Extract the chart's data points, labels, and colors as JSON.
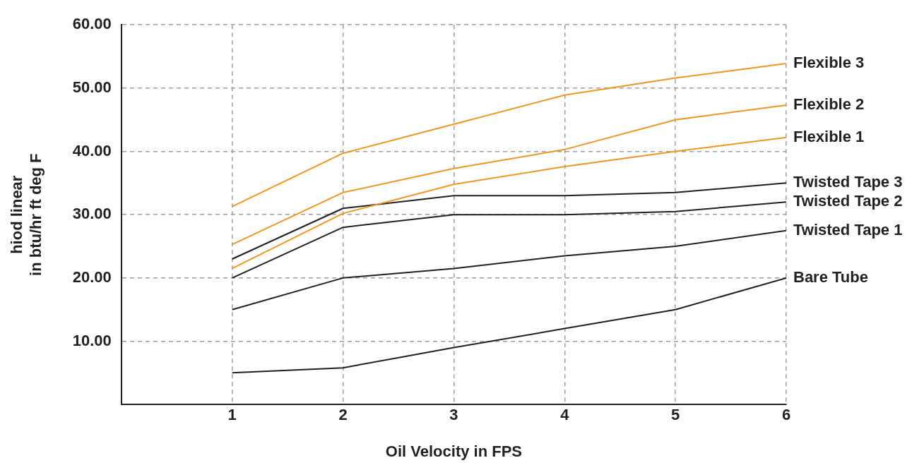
{
  "chart_data": {
    "type": "line",
    "xlabel": "Oil Velocity in FPS",
    "ylabel": "hiod linear\nin btu/hr ft deg F",
    "x": [
      1,
      2,
      3,
      4,
      5,
      6
    ],
    "xlim": [
      0,
      6
    ],
    "xticks": [
      {
        "value": 0,
        "label": null
      },
      1,
      2,
      3,
      4,
      5,
      6
    ],
    "ylim": [
      0,
      60
    ],
    "yticks": [
      {
        "value": 0,
        "label": null
      },
      {
        "value": 10,
        "label": "10.00"
      },
      {
        "value": 20,
        "label": "20.00"
      },
      {
        "value": 30,
        "label": "30.00"
      },
      {
        "value": 40,
        "label": "40.00"
      },
      {
        "value": 50,
        "label": "50.00"
      },
      {
        "value": 60,
        "label": "60.00"
      }
    ],
    "grid": true,
    "legend": false,
    "series": [
      {
        "name": "Flexible 3",
        "color": "#f7941d",
        "values": [
          31.3,
          39.7,
          44.3,
          48.9,
          51.6,
          53.9
        ]
      },
      {
        "name": "Flexible 2",
        "color": "#f7941d",
        "values": [
          25.3,
          33.5,
          37.3,
          40.3,
          45,
          47.3
        ]
      },
      {
        "name": "Flexible 1",
        "color": "#f7941d",
        "values": [
          21.5,
          30.2,
          34.8,
          37.6,
          40,
          42.2
        ]
      },
      {
        "name": "Twisted Tape 3",
        "color": "#231f20",
        "values": [
          23,
          31,
          33,
          33,
          33.5,
          35
        ]
      },
      {
        "name": "Twisted Tape 2",
        "color": "#231f20",
        "values": [
          20,
          28,
          30,
          30,
          30.5,
          32
        ]
      },
      {
        "name": "Twisted Tape 1",
        "color": "#231f20",
        "values": [
          15,
          20,
          21.5,
          23.5,
          25,
          27.5
        ]
      },
      {
        "name": "Bare Tube",
        "color": "#231f20",
        "values": [
          5,
          5.8,
          9,
          12,
          15,
          20
        ]
      }
    ]
  }
}
